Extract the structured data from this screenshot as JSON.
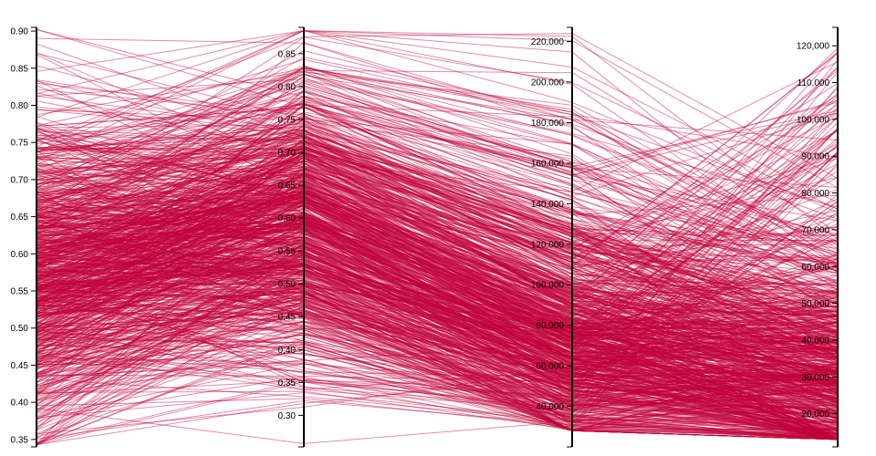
{
  "chart_data": {
    "type": "parallel-coordinates",
    "line_color": "#c0003a",
    "line_opacity": 0.45,
    "record_count": 900,
    "axes": [
      {
        "range": [
          0.34,
          0.905
        ],
        "ticks": [
          {
            "value": 0.35,
            "label": "0.35"
          },
          {
            "value": 0.4,
            "label": "0.40"
          },
          {
            "value": 0.45,
            "label": "0.45"
          },
          {
            "value": 0.5,
            "label": "0.50"
          },
          {
            "value": 0.55,
            "label": "0.55"
          },
          {
            "value": 0.6,
            "label": "0.60"
          },
          {
            "value": 0.65,
            "label": "0.65"
          },
          {
            "value": 0.7,
            "label": "0.70"
          },
          {
            "value": 0.75,
            "label": "0.75"
          },
          {
            "value": 0.8,
            "label": "0.80"
          },
          {
            "value": 0.85,
            "label": "0.85"
          },
          {
            "value": 0.9,
            "label": "0.90"
          }
        ]
      },
      {
        "range": [
          0.252,
          0.89
        ],
        "ticks": [
          {
            "value": 0.3,
            "label": "0.30"
          },
          {
            "value": 0.35,
            "label": "0.35"
          },
          {
            "value": 0.4,
            "label": "0.40"
          },
          {
            "value": 0.45,
            "label": "0.45"
          },
          {
            "value": 0.5,
            "label": "0.50"
          },
          {
            "value": 0.55,
            "label": "0.55"
          },
          {
            "value": 0.6,
            "label": "0.60"
          },
          {
            "value": 0.65,
            "label": "0.65"
          },
          {
            "value": 0.7,
            "label": "0.70"
          },
          {
            "value": 0.75,
            "label": "0.75"
          },
          {
            "value": 0.8,
            "label": "0.80"
          },
          {
            "value": 0.85,
            "label": "0.85"
          }
        ]
      },
      {
        "range": [
          20000,
          227000
        ],
        "ticks": [
          {
            "value": 40000,
            "label": "40,000"
          },
          {
            "value": 60000,
            "label": "60,000"
          },
          {
            "value": 80000,
            "label": "80,000"
          },
          {
            "value": 100000,
            "label": "100,000"
          },
          {
            "value": 120000,
            "label": "120,000"
          },
          {
            "value": 140000,
            "label": "140,000"
          },
          {
            "value": 160000,
            "label": "160,000"
          },
          {
            "value": 180000,
            "label": "180,000"
          },
          {
            "value": 200000,
            "label": "200,000"
          },
          {
            "value": 220000,
            "label": "220,000"
          }
        ]
      },
      {
        "range": [
          11000,
          125000
        ],
        "ticks": [
          {
            "value": 20000,
            "label": "20,000"
          },
          {
            "value": 30000,
            "label": "30,000"
          },
          {
            "value": 40000,
            "label": "40,000"
          },
          {
            "value": 50000,
            "label": "50,000"
          },
          {
            "value": 60000,
            "label": "60,000"
          },
          {
            "value": 70000,
            "label": "70,000"
          },
          {
            "value": 80000,
            "label": "80,000"
          },
          {
            "value": 90000,
            "label": "90,000"
          },
          {
            "value": 100000,
            "label": "100,000"
          },
          {
            "value": 110000,
            "label": "110,000"
          },
          {
            "value": 120000,
            "label": "120,000"
          }
        ]
      }
    ]
  }
}
